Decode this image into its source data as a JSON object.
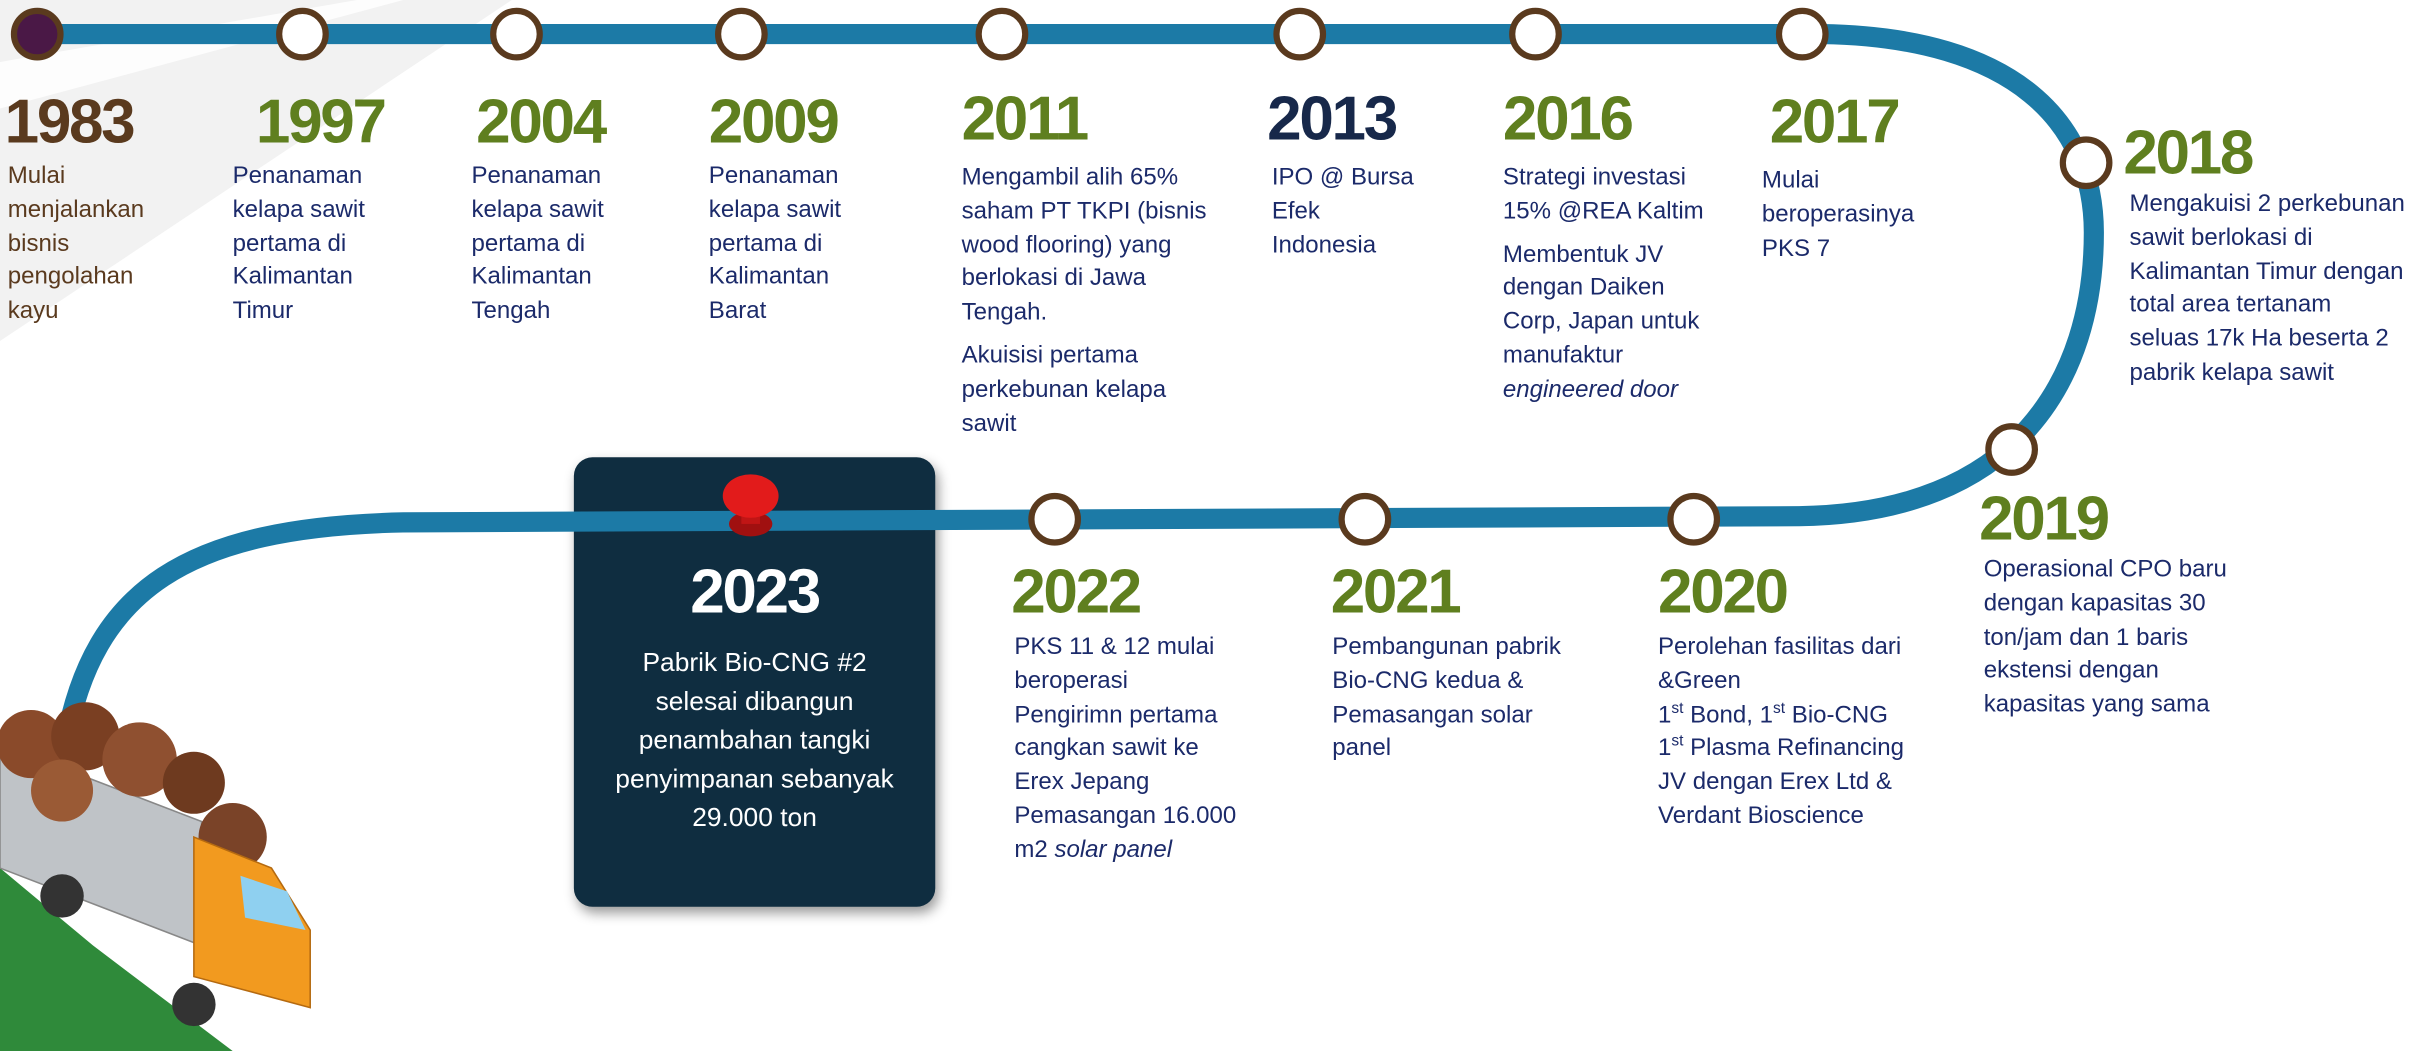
{
  "milestones": [
    {
      "year": "1983",
      "color": "#5a3a1e",
      "text_color": "#5a3a1e",
      "paragraphs": [
        [
          "Mulai",
          "menjalankan",
          "bisnis",
          "pengolahan",
          "kayu"
        ]
      ]
    },
    {
      "year": "1997",
      "color": "#5f7f1f",
      "text_color": "#1b2a6a",
      "paragraphs": [
        [
          "Penanaman",
          "kelapa sawit",
          "pertama di",
          "Kalimantan",
          "Timur"
        ]
      ]
    },
    {
      "year": "2004",
      "color": "#5f7f1f",
      "text_color": "#1b2a6a",
      "paragraphs": [
        [
          "Penanaman",
          "kelapa sawit",
          "pertama di",
          "Kalimantan",
          "Tengah"
        ]
      ]
    },
    {
      "year": "2009",
      "color": "#5f7f1f",
      "text_color": "#1b2a6a",
      "paragraphs": [
        [
          "Penanaman",
          "kelapa sawit",
          "pertama di",
          "Kalimantan",
          "Barat"
        ]
      ]
    },
    {
      "year": "2011",
      "color": "#5f7f1f",
      "text_color": "#1b2a6a",
      "paragraphs": [
        [
          "Mengambil alih 65%",
          "saham PT TKPI (bisnis",
          "wood flooring) yang",
          "berlokasi di Jawa",
          "Tengah."
        ],
        [
          "Akuisisi pertama",
          "perkebunan kelapa",
          "sawit"
        ]
      ]
    },
    {
      "year": "2013",
      "color": "#17284a",
      "text_color": "#1b2a6a",
      "paragraphs": [
        [
          "IPO @ Bursa",
          "Efek",
          "Indonesia"
        ]
      ]
    },
    {
      "year": "2016",
      "color": "#5f7f1f",
      "text_color": "#1b2a6a",
      "paragraphs": [
        [
          "Strategi investasi",
          "15%  @REA Kaltim"
        ],
        [
          "Membentuk JV",
          "dengan Daiken",
          "Corp, Japan untuk",
          "manufaktur",
          [
            {
              "text": "engineered door",
              "style": "italic"
            }
          ]
        ]
      ]
    },
    {
      "year": "2017",
      "color": "#5f7f1f",
      "text_color": "#1b2a6a",
      "paragraphs": [
        [
          "Mulai",
          "beroperasinya",
          "PKS 7"
        ]
      ]
    },
    {
      "year": "2018",
      "color": "#5f7f1f",
      "text_color": "#1b2a6a",
      "paragraphs": [
        [
          "Mengakuisi 2 perkebunan",
          "sawit berlokasi di",
          "Kalimantan Timur dengan",
          "total area tertanam",
          "seluas 17k Ha beserta 2",
          "pabrik kelapa sawit"
        ]
      ]
    },
    {
      "year": "2019",
      "color": "#5f7f1f",
      "text_color": "#1b2a6a",
      "paragraphs": [
        [
          "Operasional CPO baru",
          "dengan kapasitas 30",
          "ton/jam dan 1 baris",
          "ekstensi dengan",
          "kapasitas yang sama"
        ]
      ]
    },
    {
      "year": "2020",
      "color": "#5f7f1f",
      "text_color": "#1b2a6a",
      "paragraphs": [
        [
          "Perolehan fasilitas dari",
          "&Green",
          [
            {
              "text": "1"
            },
            {
              "text": "st",
              "style": "sup"
            },
            {
              "text": " Bond, 1"
            },
            {
              "text": "st",
              "style": "sup"
            },
            {
              "text": " Bio-CNG"
            }
          ],
          [
            {
              "text": "1"
            },
            {
              "text": "st",
              "style": "sup"
            },
            {
              "text": " Plasma Refinancing"
            }
          ],
          "JV dengan Erex Ltd &",
          "Verdant Bioscience"
        ]
      ]
    },
    {
      "year": "2021",
      "color": "#5f7f1f",
      "text_color": "#1b2a6a",
      "paragraphs": [
        [
          "Pembangunan pabrik",
          "Bio-CNG kedua &",
          "Pemasangan solar",
          "panel"
        ]
      ]
    },
    {
      "year": "2022",
      "color": "#5f7f1f",
      "text_color": "#1b2a6a",
      "paragraphs": [
        [
          "PKS 11 & 12 mulai",
          "beroperasi",
          "Pengirimn pertama",
          "cangkan sawit ke",
          "Erex Jepang",
          "Pemasangan 16.000",
          [
            {
              "text": "m2 "
            },
            {
              "text": "solar panel",
              "style": "italic"
            }
          ]
        ]
      ]
    },
    {
      "year": "2023",
      "color": "#ffffff",
      "text_color": "#ffffff",
      "paragraphs": [
        [
          "Pabrik Bio-CNG #2",
          "selesai dibangun",
          "penambahan tangki",
          "penyimpanan sebanyak",
          "29.000 ton"
        ]
      ]
    }
  ]
}
